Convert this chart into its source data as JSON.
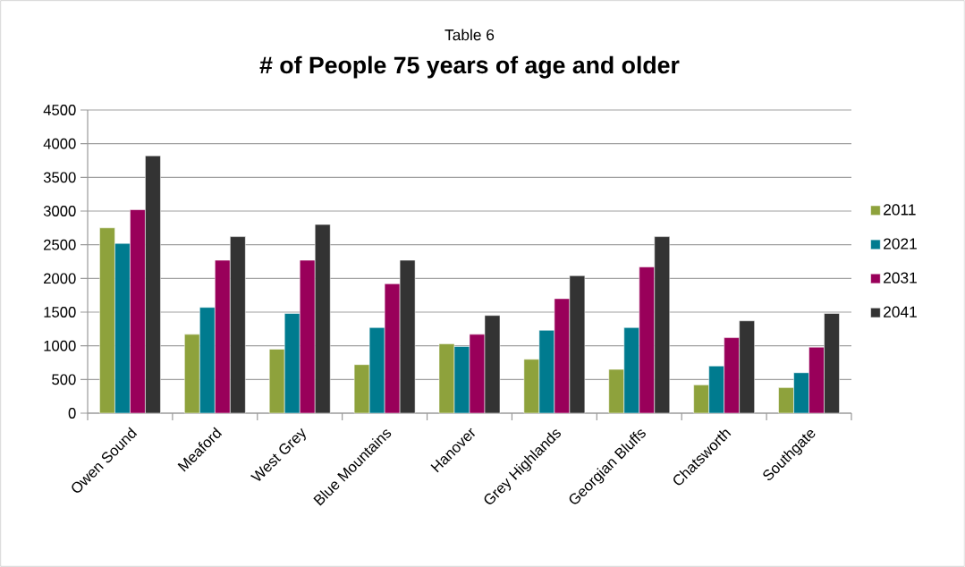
{
  "chart_data": {
    "type": "bar",
    "subtitle": "Table  6",
    "title": "# of People 75 years of age and older",
    "categories": [
      "Owen Sound",
      "Meaford",
      "West Grey",
      "Blue Mountains",
      "Hanover",
      "Grey Highlands",
      "Georgian Bluffs",
      "Chatsworth",
      "Southgate"
    ],
    "series": [
      {
        "name": "2011",
        "color": "#8ea23c",
        "values": [
          2750,
          1170,
          950,
          720,
          1030,
          800,
          650,
          420,
          380
        ]
      },
      {
        "name": "2021",
        "color": "#007b8f",
        "values": [
          2520,
          1570,
          1480,
          1270,
          990,
          1230,
          1270,
          700,
          600
        ]
      },
      {
        "name": "2031",
        "color": "#99005a",
        "values": [
          3020,
          2270,
          2270,
          1920,
          1170,
          1700,
          2170,
          1120,
          980
        ]
      },
      {
        "name": "2041",
        "color": "#333333",
        "values": [
          3820,
          2620,
          2800,
          2270,
          1450,
          2040,
          2620,
          1370,
          1480
        ]
      }
    ],
    "ylim": [
      0,
      4500
    ],
    "yticks": [
      0,
      500,
      1000,
      1500,
      2000,
      2500,
      3000,
      3500,
      4000,
      4500
    ],
    "grid": "y",
    "legend": "right"
  }
}
